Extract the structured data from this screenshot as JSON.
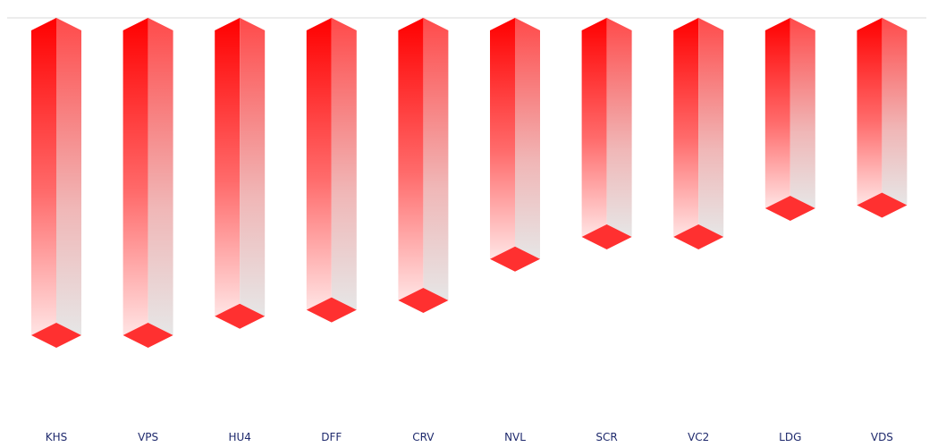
{
  "chart_data": {
    "type": "bar",
    "orientation": "inverted",
    "title": "",
    "xlabel": "",
    "ylabel": "",
    "categories": [
      "KHS",
      "VPS",
      "HU4",
      "DFF",
      "CRV",
      "NVL",
      "SCR",
      "VC2",
      "LDG",
      "VDS"
    ],
    "values": [
      100,
      100,
      94,
      92,
      89,
      76,
      69,
      69,
      60,
      59
    ],
    "ylim": [
      0,
      100
    ],
    "grid": false,
    "legend": "none",
    "colors": {
      "top": "#ff0000",
      "bottom": "#e6e6e6",
      "cap": "#ff3030",
      "baseline": "#d9d9d9",
      "label": "#1f2a6d"
    }
  }
}
